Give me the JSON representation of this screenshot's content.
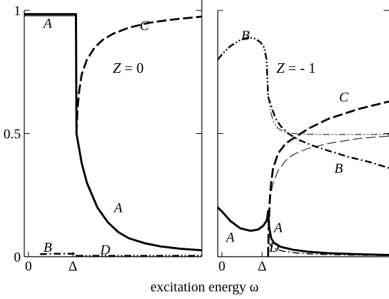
{
  "chart_data": [
    {
      "panel": "left",
      "type": "line",
      "annotation": "Z = 0",
      "ylim": [
        0,
        1
      ],
      "y_ticks": [
        {
          "value": 0,
          "label": "0"
        },
        {
          "value": 0.5,
          "label": "0.5"
        },
        {
          "value": 1,
          "label": "1"
        }
      ],
      "x_ticks": [
        {
          "value": 0,
          "label": "0"
        },
        {
          "value": 1,
          "label": "Δ"
        }
      ],
      "xlim": [
        0,
        3.4
      ],
      "curve_labels": [
        {
          "text": "A",
          "x": 0.45,
          "y": 0.95
        },
        {
          "text": "C",
          "x": 2.3,
          "y": 0.94
        },
        {
          "text": "A",
          "x": 1.8,
          "y": 0.2
        },
        {
          "text": "B",
          "x": 0.45,
          "y": 0.04
        },
        {
          "text": "D",
          "x": 1.55,
          "y": 0.03
        }
      ],
      "series": [
        {
          "key": "A",
          "style": "solid",
          "width": 3,
          "x": [
            0,
            0.99,
            1.0,
            1.1,
            1.2,
            1.4,
            1.6,
            1.8,
            2.0,
            2.3,
            2.6,
            3.0,
            3.4
          ],
          "y": [
            0.985,
            0.985,
            0.5,
            0.38,
            0.3,
            0.2,
            0.14,
            0.1,
            0.075,
            0.055,
            0.042,
            0.032,
            0.026
          ]
        },
        {
          "key": "A_thin",
          "style": "solid",
          "width": 1.2,
          "x": [
            0,
            0.99
          ],
          "y": [
            0.978,
            0.978
          ]
        },
        {
          "key": "C",
          "style": "dash",
          "width": 2.8,
          "x": [
            1.0,
            1.02,
            1.05,
            1.1,
            1.2,
            1.35,
            1.5,
            1.7,
            2.0,
            2.4,
            2.8,
            3.4
          ],
          "y": [
            0.5,
            0.6,
            0.67,
            0.74,
            0.8,
            0.85,
            0.88,
            0.905,
            0.93,
            0.95,
            0.962,
            0.975
          ]
        },
        {
          "key": "B",
          "style": "dashdot",
          "width": 2.4,
          "x": [
            0.3,
            0.6,
            0.99,
            1.0
          ],
          "y": [
            0.01,
            0.012,
            0.012,
            0.0
          ]
        },
        {
          "key": "D",
          "style": "dashdotdot",
          "width": 2.2,
          "x": [
            1.0,
            3.4
          ],
          "y": [
            0.004,
            0.004
          ]
        }
      ]
    },
    {
      "panel": "right",
      "type": "line",
      "annotation": "Z = - 1",
      "ylim": [
        0,
        1
      ],
      "y_ticks": [
        {
          "value": 0,
          "label": ""
        },
        {
          "value": 0.5,
          "label": ""
        },
        {
          "value": 1,
          "label": ""
        }
      ],
      "x_ticks": [
        {
          "value": 0,
          "label": "0"
        },
        {
          "value": 1,
          "label": "Δ"
        }
      ],
      "xlim": [
        0,
        3.4
      ],
      "curve_labels": [
        {
          "text": "B",
          "x": 0.55,
          "y": 0.9
        },
        {
          "text": "C",
          "x": 2.5,
          "y": 0.65
        },
        {
          "text": "B",
          "x": 2.4,
          "y": 0.36
        },
        {
          "text": "A",
          "x": 0.25,
          "y": 0.08
        },
        {
          "text": "A",
          "x": 1.2,
          "y": 0.12
        },
        {
          "text": "D",
          "x": 1.12,
          "y": 0.04
        }
      ],
      "series": [
        {
          "key": "A",
          "style": "solid",
          "width": 3,
          "x": [
            0,
            0.1,
            0.25,
            0.45,
            0.65,
            0.8,
            0.9,
            0.97,
            0.99,
            1.0,
            1.02,
            1.06,
            1.12,
            1.25,
            1.5,
            1.8,
            2.2,
            2.8,
            3.4
          ],
          "y": [
            0.2,
            0.18,
            0.145,
            0.115,
            0.105,
            0.11,
            0.125,
            0.145,
            0.165,
            0.185,
            0.12,
            0.075,
            0.055,
            0.04,
            0.028,
            0.02,
            0.014,
            0.01,
            0.007
          ]
        },
        {
          "key": "B",
          "style": "dashdotdot",
          "width": 2.4,
          "x": [
            0,
            0.1,
            0.25,
            0.45,
            0.6,
            0.75,
            0.85,
            0.92,
            0.97,
            1.0
          ],
          "y": [
            0.8,
            0.825,
            0.855,
            0.88,
            0.89,
            0.885,
            0.87,
            0.85,
            0.8,
            0.65
          ]
        },
        {
          "key": "B_low",
          "style": "dashdot",
          "width": 2.4,
          "x": [
            1.0,
            1.08,
            1.15,
            1.25,
            1.4,
            1.6,
            1.9,
            2.2,
            2.6,
            3.0,
            3.4
          ],
          "y": [
            0.65,
            0.6,
            0.56,
            0.53,
            0.5,
            0.475,
            0.45,
            0.43,
            0.405,
            0.385,
            0.36
          ]
        },
        {
          "key": "B_thin",
          "style": "dashdotdot",
          "width": 1.0,
          "x": [
            1.0,
            1.05,
            1.1,
            1.2,
            1.35,
            1.5,
            1.8,
            2.2,
            2.8,
            3.4
          ],
          "y": [
            0.65,
            0.59,
            0.55,
            0.52,
            0.505,
            0.5,
            0.497,
            0.496,
            0.496,
            0.496
          ]
        },
        {
          "key": "C",
          "style": "dash",
          "width": 2.8,
          "x": [
            1.0,
            1.01,
            1.03,
            1.06,
            1.1,
            1.2,
            1.35,
            1.5,
            1.8,
            2.2,
            2.8,
            3.4
          ],
          "y": [
            0.0,
            0.1,
            0.22,
            0.3,
            0.36,
            0.42,
            0.46,
            0.48,
            0.52,
            0.56,
            0.6,
            0.63
          ]
        },
        {
          "key": "C_thin",
          "style": "dash",
          "width": 1.0,
          "x": [
            1.0,
            1.02,
            1.05,
            1.1,
            1.2,
            1.35,
            1.5,
            1.8,
            2.2,
            2.8,
            3.4
          ],
          "y": [
            0.0,
            0.14,
            0.25,
            0.3,
            0.35,
            0.39,
            0.415,
            0.44,
            0.46,
            0.48,
            0.49
          ]
        },
        {
          "key": "D",
          "style": "dashdot",
          "width": 1.5,
          "x": [
            1.0,
            1.05,
            1.15,
            1.3,
            1.6,
            2.0,
            2.6,
            3.4
          ],
          "y": [
            0.06,
            0.045,
            0.032,
            0.022,
            0.014,
            0.01,
            0.007,
            0.005
          ]
        }
      ]
    }
  ],
  "xlabel": "excitation energy ω"
}
